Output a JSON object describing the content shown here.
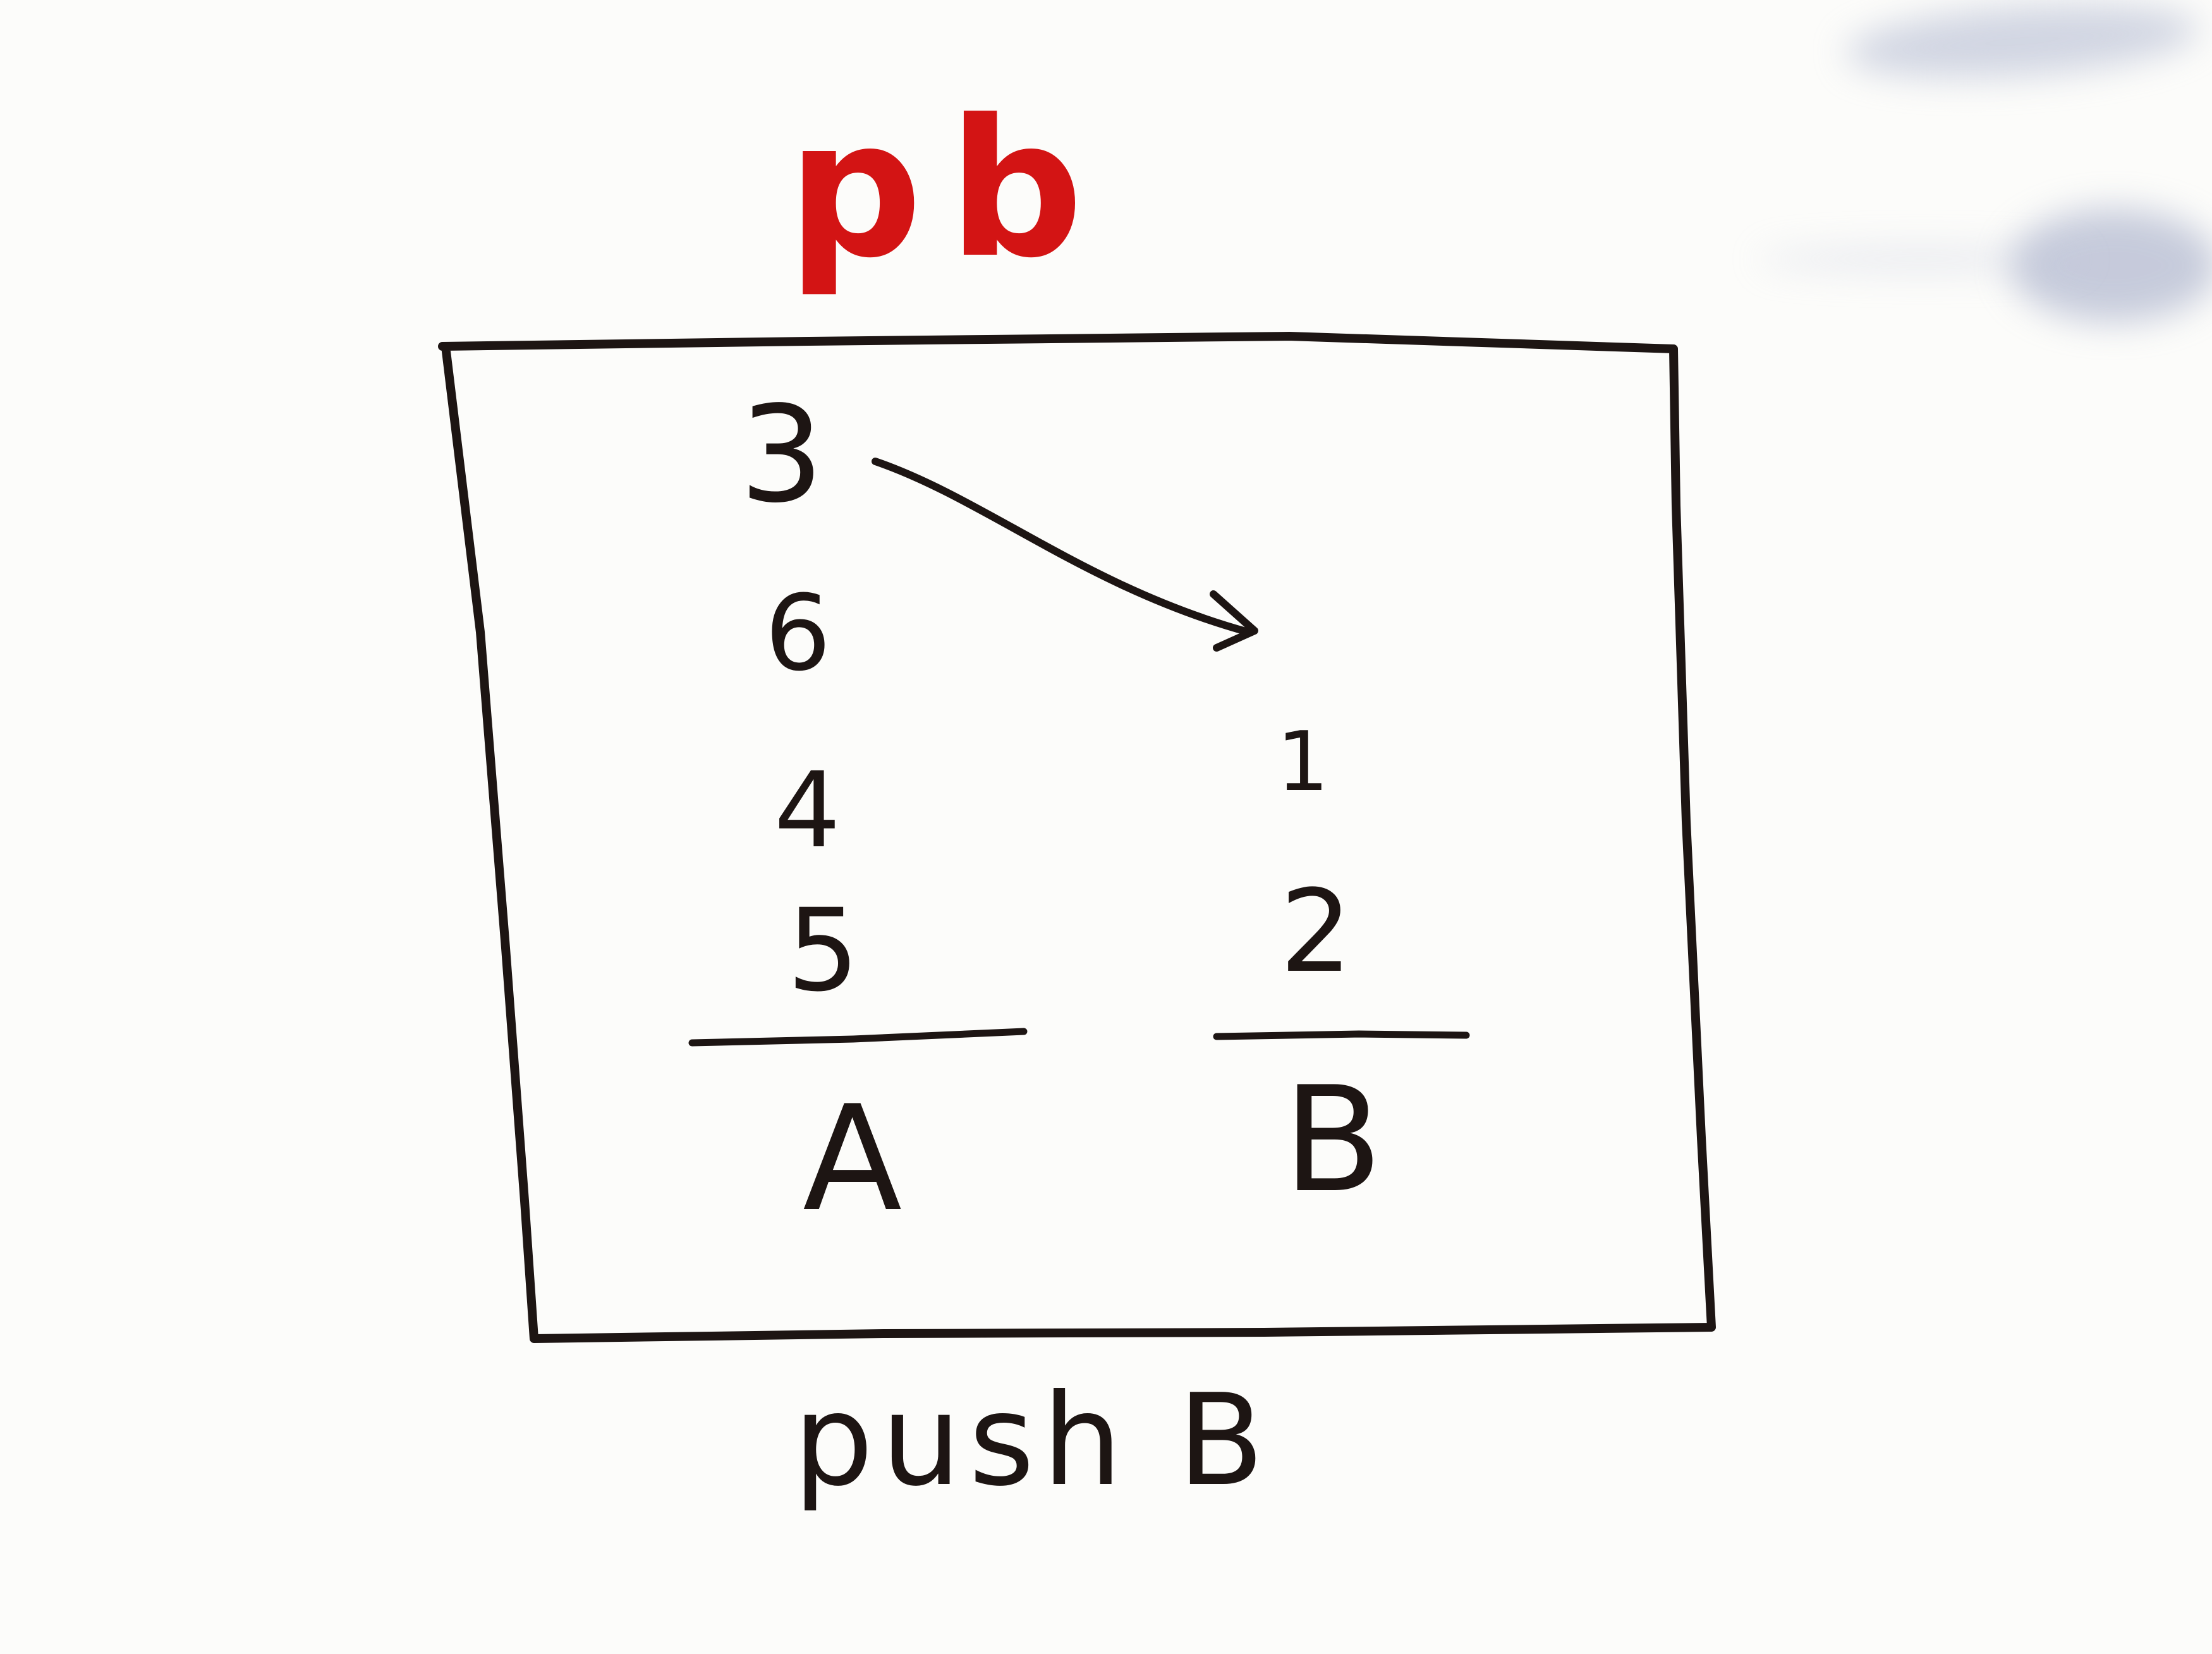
{
  "diagram": {
    "title": "pb",
    "caption": "push B",
    "stack_a": {
      "label": "A",
      "items": [
        "3",
        "6",
        "4",
        "5"
      ]
    },
    "stack_b": {
      "label": "B",
      "items": [
        "1",
        "2"
      ]
    },
    "colors": {
      "ink": "#1d1513",
      "title": "#d31414",
      "board": "#fcfcfa"
    }
  }
}
